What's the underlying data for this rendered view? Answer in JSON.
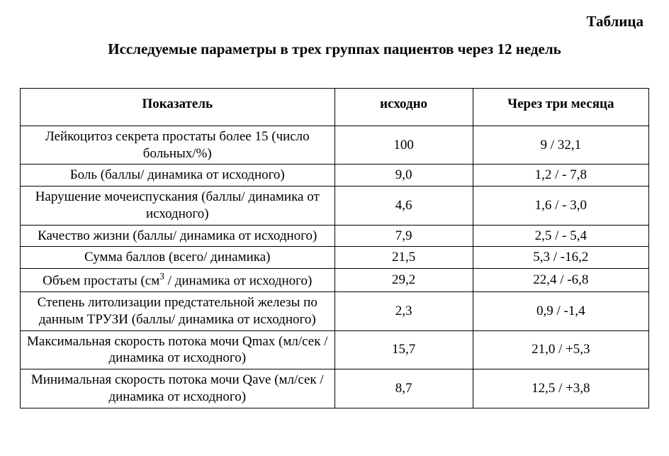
{
  "titles": {
    "label": "Таблица",
    "main": "Исследуемые параметры в трех группах пациентов через 12 недель"
  },
  "table": {
    "type": "table",
    "columns": [
      {
        "label": "Показатель",
        "width_pct": 50,
        "align": "center"
      },
      {
        "label": "исходно",
        "width_pct": 22,
        "align": "center"
      },
      {
        "label": "Через три месяца",
        "width_pct": 28,
        "align": "center"
      }
    ],
    "header_fontsize_pt": 15,
    "cell_fontsize_pt": 14,
    "border_color": "#000000",
    "background_color": "#ffffff",
    "text_color": "#000000",
    "font_family": "Times New Roman",
    "rows": [
      {
        "param": "Лейкоцитоз секрета простаты более 15 (число больных/%)",
        "baseline": "100",
        "after": "9 / 32,1"
      },
      {
        "param": "Боль (баллы/ динамика от исходного)",
        "baseline": "9,0",
        "after": "1,2 / - 7,8"
      },
      {
        "param": "Нарушение мочеиспускания (баллы/ динамика от исходного)",
        "baseline": "4,6",
        "after": "1,6 / - 3,0"
      },
      {
        "param": "Качество жизни (баллы/ динамика от исходного)",
        "baseline": "7,9",
        "after": "2,5 / - 5,4"
      },
      {
        "param": "Сумма баллов (всего/ динамика)",
        "baseline": "21,5",
        "after": "5,3 / -16,2"
      },
      {
        "param_html": "Объем простаты (см<sup>3</sup> / динамика от исходного)",
        "param": "Объем простаты (см3 / динамика от исходного)",
        "baseline": "29,2",
        "after": "22,4 / -6,8"
      },
      {
        "param": "Степень литолизации предстательной железы по данным ТРУЗИ (баллы/ динамика от исходного)",
        "baseline": "2,3",
        "after": "0,9 / -1,4"
      },
      {
        "param": "Максимальная скорость потока мочи Qmax (мл/сек / динамика от исходного)",
        "baseline": "15,7",
        "after": "21,0 / +5,3"
      },
      {
        "param": "Минимальная скорость потока мочи Qave (мл/сек / динамика от исходного)",
        "baseline": "8,7",
        "after": "12,5 / +3,8"
      }
    ]
  }
}
